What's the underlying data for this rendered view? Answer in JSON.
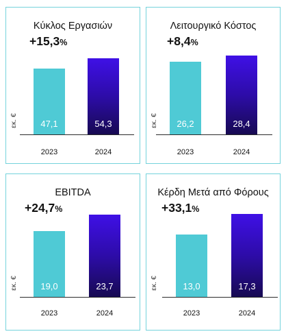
{
  "colors": {
    "bar_2023": "#4fcad5",
    "bar_2024_gradient": [
      "#3f10e6",
      "#170a52"
    ],
    "panel_border": "#74d3dc"
  },
  "chart_data": [
    {
      "type": "bar",
      "title": "Κύκλος Εργασιών",
      "change": "+15,3",
      "change_unit": "%",
      "ylabel": "εκ. €",
      "categories": [
        "2023",
        "2024"
      ],
      "values": [
        47.1,
        54.3
      ],
      "value_labels": [
        "47,1",
        "54,3"
      ]
    },
    {
      "type": "bar",
      "title": "Λειτουργικό Κόστος",
      "change": "+8,4",
      "change_unit": "%",
      "ylabel": "εκ. €",
      "categories": [
        "2023",
        "2024"
      ],
      "values": [
        26.2,
        28.4
      ],
      "value_labels": [
        "26,2",
        "28,4"
      ]
    },
    {
      "type": "bar",
      "title": "EBITDA",
      "change": "+24,7",
      "change_unit": "%",
      "ylabel": "εκ. €",
      "categories": [
        "2023",
        "2024"
      ],
      "values": [
        19.0,
        23.7
      ],
      "value_labels": [
        "19,0",
        "23,7"
      ]
    },
    {
      "type": "bar",
      "title": "Κέρδη Μετά από Φόρους",
      "change": "+33,1",
      "change_unit": "%",
      "ylabel": "εκ. €",
      "categories": [
        "2023",
        "2024"
      ],
      "values": [
        13.0,
        17.3
      ],
      "value_labels": [
        "13,0",
        "17,3"
      ]
    }
  ]
}
